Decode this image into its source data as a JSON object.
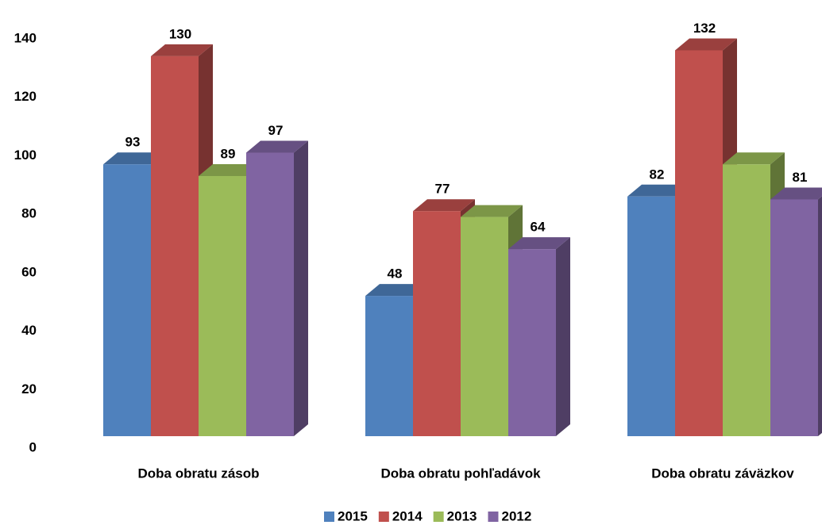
{
  "chart_data": {
    "type": "bar3d",
    "categories": [
      "Doba obratu zásob",
      "Doba obratu pohľadávok",
      "Doba obratu záväzkov"
    ],
    "series": [
      {
        "name": "2015",
        "color": "#4f81bd",
        "values": [
          93,
          48,
          82
        ],
        "value_labels": [
          "93",
          "48",
          "82"
        ]
      },
      {
        "name": "2014",
        "color": "#c0504d",
        "values": [
          130,
          77,
          132
        ],
        "value_labels": [
          "130",
          "77",
          "132"
        ]
      },
      {
        "name": "2013",
        "color": "#9bbb59",
        "values": [
          89,
          75,
          93
        ],
        "value_labels": [
          "89",
          null,
          null
        ]
      },
      {
        "name": "2012",
        "color": "#8064a2",
        "values": [
          97,
          64,
          81
        ],
        "value_labels": [
          "97",
          "64",
          "81"
        ]
      }
    ],
    "ylim": [
      0,
      140
    ],
    "yticks": [
      0,
      20,
      40,
      60,
      80,
      100,
      120,
      140
    ],
    "legend": "bottom"
  }
}
